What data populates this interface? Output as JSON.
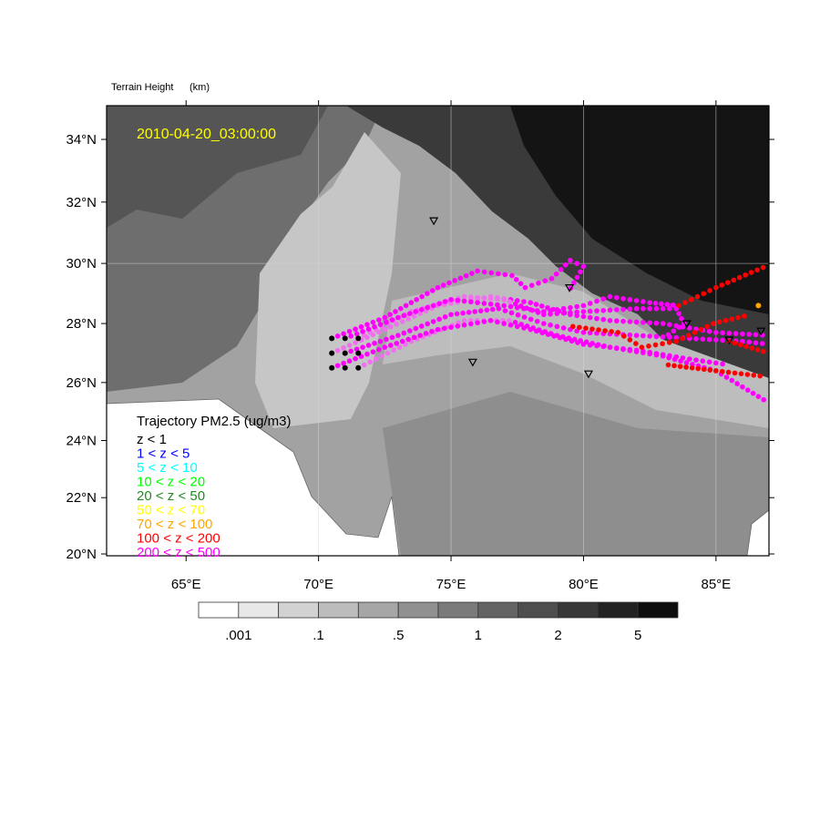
{
  "chart_data": {
    "type": "map-trajectory",
    "title_left": "Terrain Height",
    "title_units": "(km)",
    "timestamp": "2010-04-20_03:00:00",
    "projection": "mercator",
    "lon_range": [
      62,
      87
    ],
    "lat_range": [
      20,
      35.1
    ],
    "lon_ticks": [
      65,
      70,
      75,
      80,
      85
    ],
    "lon_tick_labels": [
      "65°E",
      "70°E",
      "75°E",
      "80°E",
      "85°E"
    ],
    "lat_ticks": [
      20,
      22,
      24,
      26,
      28,
      30,
      32,
      34
    ],
    "lat_tick_labels": [
      "20°N",
      "22°N",
      "24°N",
      "26°N",
      "28°N",
      "30°N",
      "32°N",
      "34°N"
    ],
    "colorbar": {
      "colors": [
        "#ffffff",
        "#e8e8e8",
        "#d2d2d2",
        "#bcbcbc",
        "#a6a6a6",
        "#909090",
        "#7a7a7a",
        "#646464",
        "#4e4e4e",
        "#383838",
        "#222222",
        "#0e0e0e"
      ],
      "labels": [
        ".001",
        ".1",
        ".5",
        "1",
        "2",
        "5"
      ]
    },
    "legend": {
      "title": "Trajectory PM2.5 (ug/m3)",
      "items": [
        {
          "label": "z < 1",
          "color": "#000000"
        },
        {
          "label": "1 < z < 5",
          "color": "#0000ff"
        },
        {
          "label": "5 < z < 10",
          "color": "#00ffff"
        },
        {
          "label": "10 < z < 20",
          "color": "#00ff00"
        },
        {
          "label": "20 < z < 50",
          "color": "#228b22"
        },
        {
          "label": "50 < z < 70",
          "color": "#ffff00"
        },
        {
          "label": "70 < z < 100",
          "color": "#ffa500"
        },
        {
          "label": "100 < z < 200",
          "color": "#ff0000"
        },
        {
          "label": "200 < z < 500",
          "color": "#ff00ff"
        }
      ]
    },
    "sources": [
      [
        70.5,
        27.5
      ],
      [
        71,
        27.5
      ],
      [
        71.5,
        27.5
      ],
      [
        70.5,
        27
      ],
      [
        71,
        27
      ],
      [
        71.5,
        27
      ],
      [
        70.5,
        26.5
      ],
      [
        71,
        26.5
      ],
      [
        71.5,
        26.5
      ]
    ],
    "stations": [
      [
        74.35,
        31.4
      ],
      [
        79.47,
        29.2
      ],
      [
        75.82,
        26.7
      ],
      [
        80.19,
        26.3
      ],
      [
        83.9,
        28.0
      ],
      [
        85.5,
        27.45
      ],
      [
        86.7,
        27.75
      ]
    ],
    "trajectories": [
      {
        "color": "#ff00ff",
        "points": [
          [
            70.5,
            27.5
          ],
          [
            72.5,
            28.2
          ],
          [
            74.5,
            29.2
          ],
          [
            76,
            29.75
          ],
          [
            77.3,
            29.6
          ],
          [
            77.8,
            29.2
          ],
          [
            78.8,
            29.5
          ],
          [
            79.5,
            30.1
          ],
          [
            80,
            29.9
          ],
          [
            79.4,
            29.0
          ]
        ]
      },
      {
        "color": "#ff00ff",
        "points": [
          [
            70.5,
            27.0
          ],
          [
            72.5,
            27.8
          ],
          [
            74.5,
            28.6
          ],
          [
            76.5,
            28.9
          ],
          [
            78,
            28.7
          ],
          [
            79.5,
            28.3
          ],
          [
            81,
            28.1
          ],
          [
            83,
            28.0
          ],
          [
            85,
            27.7
          ],
          [
            87,
            27.6
          ]
        ]
      },
      {
        "color": "#ff00ff",
        "points": [
          [
            71,
            27.0
          ],
          [
            73,
            27.6
          ],
          [
            75,
            28.3
          ],
          [
            76.8,
            28.5
          ],
          [
            78.5,
            28.0
          ],
          [
            80,
            27.7
          ],
          [
            82,
            27.6
          ],
          [
            84,
            27.5
          ],
          [
            86,
            27.4
          ],
          [
            87,
            27.3
          ]
        ]
      },
      {
        "color": "#ff00ff",
        "points": [
          [
            71.5,
            26.5
          ],
          [
            73.5,
            27.4
          ],
          [
            75.5,
            28.1
          ],
          [
            77.2,
            28.1
          ],
          [
            79,
            27.6
          ],
          [
            81,
            27.2
          ],
          [
            83,
            26.9
          ],
          [
            85,
            26.4
          ],
          [
            87,
            25.3
          ]
        ]
      },
      {
        "color": "#ff00ff",
        "points": [
          [
            70.5,
            26.5
          ],
          [
            72.5,
            27.2
          ],
          [
            74.5,
            27.8
          ],
          [
            76.5,
            28.1
          ],
          [
            78,
            27.8
          ],
          [
            80,
            27.3
          ],
          [
            82,
            27.1
          ],
          [
            84,
            26.8
          ],
          [
            85.5,
            26.6
          ]
        ]
      },
      {
        "color": "#ff00ff",
        "points": [
          [
            71.5,
            27.5
          ],
          [
            73.5,
            28.4
          ],
          [
            75.5,
            28.9
          ],
          [
            77,
            28.8
          ],
          [
            78.5,
            28.3
          ],
          [
            80,
            28.4
          ],
          [
            82,
            28.5
          ],
          [
            83.5,
            28.5
          ],
          [
            83.8,
            28.0
          ],
          [
            83,
            27.5
          ]
        ]
      },
      {
        "color": "#ff00ff",
        "points": [
          [
            71,
            27.5
          ],
          [
            73,
            28.2
          ],
          [
            75,
            28.8
          ],
          [
            77,
            28.6
          ],
          [
            78.5,
            28.4
          ],
          [
            80,
            28.6
          ],
          [
            81,
            28.9
          ],
          [
            82.5,
            28.7
          ],
          [
            83.6,
            28.6
          ]
        ]
      },
      {
        "color": "#ff0000",
        "points": [
          [
            83.6,
            28.6
          ],
          [
            85,
            29.2
          ],
          [
            87,
            29.95
          ]
        ]
      },
      {
        "color": "#ff0000",
        "points": [
          [
            79.6,
            27.9
          ],
          [
            81.3,
            27.7
          ],
          [
            82.2,
            27.2
          ],
          [
            83.5,
            27.4
          ],
          [
            84.9,
            28.0
          ],
          [
            86.3,
            28.3
          ]
        ]
      },
      {
        "color": "#ff0000",
        "points": [
          [
            83.2,
            26.6
          ],
          [
            85,
            26.4
          ],
          [
            86.9,
            26.2
          ]
        ]
      },
      {
        "color": "#ff0000",
        "points": [
          [
            85.5,
            27.4
          ],
          [
            87,
            27.0
          ]
        ]
      },
      {
        "color": "#ffa500",
        "points": [
          [
            86.6,
            28.6
          ]
        ]
      }
    ]
  }
}
